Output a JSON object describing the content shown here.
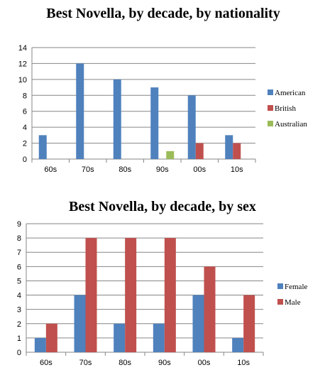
{
  "chart_data": [
    {
      "type": "bar",
      "title": "Best Novella, by decade, by nationality",
      "categories": [
        "60s",
        "70s",
        "80s",
        "90s",
        "00s",
        "10s"
      ],
      "series": [
        {
          "name": "American",
          "color": "#4F81BD",
          "values": [
            3,
            12,
            10,
            9,
            8,
            3
          ]
        },
        {
          "name": "British",
          "color": "#C0504D",
          "values": [
            0,
            0,
            0,
            0,
            2,
            2
          ]
        },
        {
          "name": "Australian",
          "color": "#9BBB59",
          "values": [
            0,
            0,
            0,
            1,
            0,
            0
          ]
        }
      ],
      "ylim": [
        0,
        14
      ],
      "yticks": [
        0,
        2,
        4,
        6,
        8,
        10,
        12,
        14
      ],
      "grid": true,
      "legend": "right"
    },
    {
      "type": "bar",
      "title": "Best Novella, by decade, by sex",
      "categories": [
        "60s",
        "70s",
        "80s",
        "90s",
        "00s",
        "10s"
      ],
      "series": [
        {
          "name": "Female",
          "color": "#4F81BD",
          "values": [
            1,
            4,
            2,
            2,
            4,
            1
          ]
        },
        {
          "name": "Male",
          "color": "#C0504D",
          "values": [
            2,
            8,
            8,
            8,
            6,
            4
          ]
        }
      ],
      "ylim": [
        0,
        9
      ],
      "yticks": [
        0,
        1,
        2,
        3,
        4,
        5,
        6,
        7,
        8,
        9
      ],
      "grid": true,
      "legend": "right"
    }
  ]
}
